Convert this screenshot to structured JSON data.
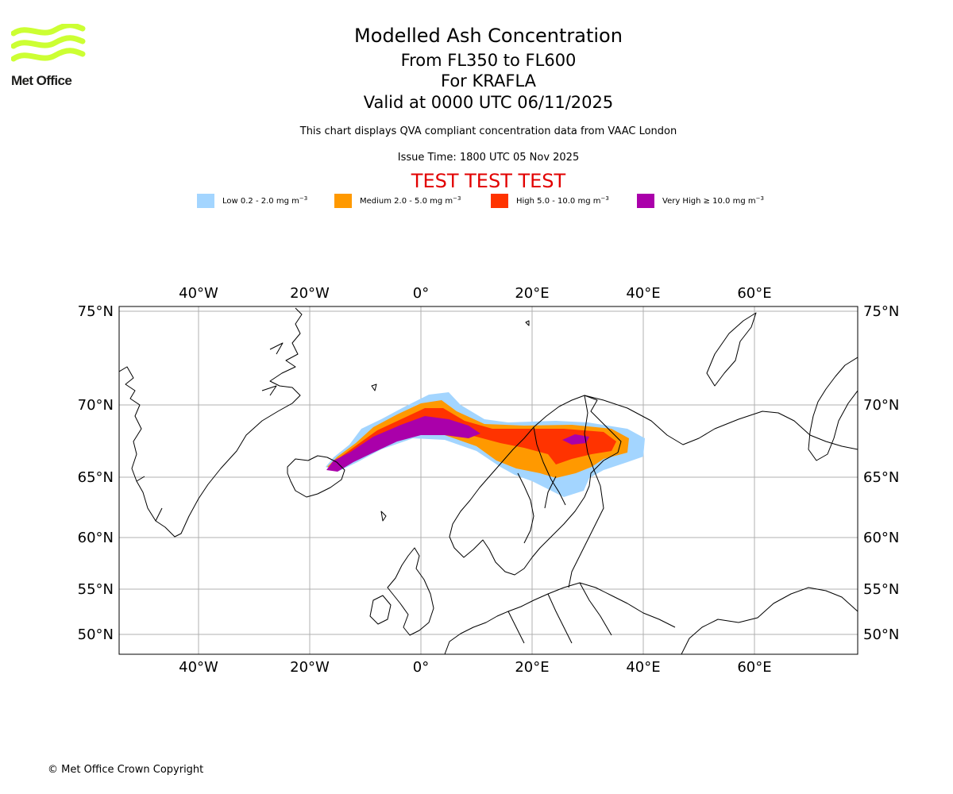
{
  "logo": {
    "text": "Met Office",
    "color": "#ccff33"
  },
  "header": {
    "title": "Modelled Ash Concentration",
    "level": "From FL350 to FL600",
    "volcano": "For KRAFLA",
    "valid": "Valid at 0000 UTC 06/11/2025",
    "qva_note": "This chart displays QVA compliant concentration data from VAAC London",
    "issue_time": "Issue Time: 1800 UTC 05 Nov 2025",
    "test_banner": "TEST TEST TEST"
  },
  "legend": [
    {
      "label": "Low 0.2 - 2.0 mg m",
      "unit_exp": "−3",
      "color": "#a3d5ff"
    },
    {
      "label": "Medium 2.0 - 5.0 mg m",
      "unit_exp": "−3",
      "color": "#ff9900"
    },
    {
      "label": "High 5.0 - 10.0 mg m",
      "unit_exp": "−3",
      "color": "#ff3300"
    },
    {
      "label": "Very High ≥ 10.0 mg m",
      "unit_exp": "−3",
      "color": "#aa00aa"
    }
  ],
  "map": {
    "lon_ticks": [
      "40°W",
      "20°W",
      "0°",
      "20°E",
      "40°E",
      "60°E"
    ],
    "lat_ticks": [
      "75°N",
      "70°N",
      "65°N",
      "60°N",
      "55°N",
      "50°N"
    ],
    "grid": true,
    "coastline_color": "#000000",
    "grid_color": "#b0b0b0"
  },
  "footer": {
    "copyright": "© Met Office Crown Copyright"
  }
}
